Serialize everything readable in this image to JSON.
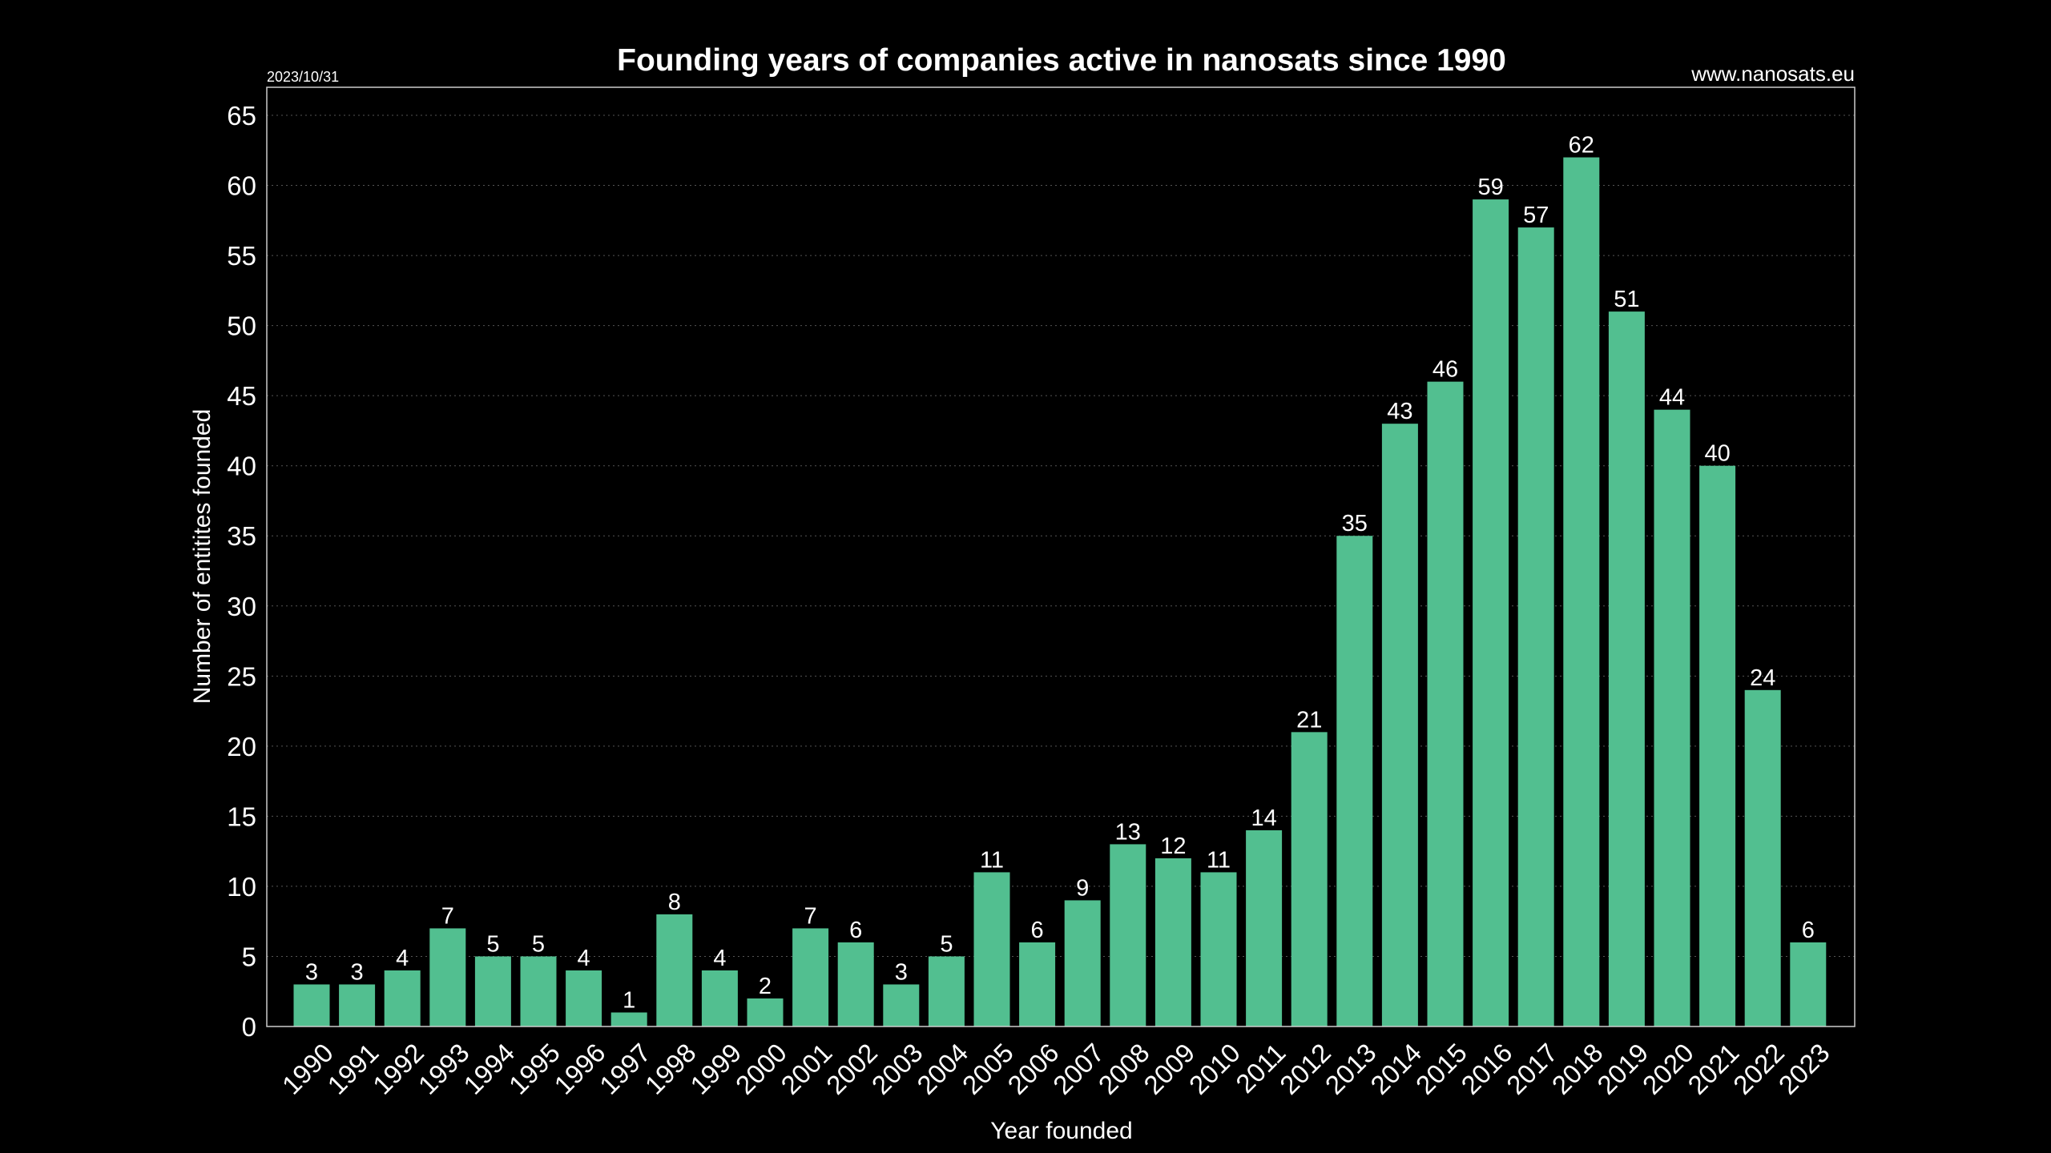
{
  "chart_data": {
    "type": "bar",
    "title": "Founding years of companies active in nanosats since 1990",
    "date": "2023/10/31",
    "site": "www.nanosats.eu",
    "xlabel": "Year founded",
    "ylabel": "Number of entitites founded",
    "ylim": [
      0,
      67
    ],
    "yticks": [
      0,
      5,
      10,
      15,
      20,
      25,
      30,
      35,
      40,
      45,
      50,
      55,
      60,
      65
    ],
    "grid": true,
    "bar_color": "#52bf90",
    "background_color": "#000000",
    "text_color": "#ffffff",
    "categories": [
      "1990",
      "1991",
      "1992",
      "1993",
      "1994",
      "1995",
      "1996",
      "1997",
      "1998",
      "1999",
      "2000",
      "2001",
      "2002",
      "2003",
      "2004",
      "2005",
      "2006",
      "2007",
      "2008",
      "2009",
      "2010",
      "2011",
      "2012",
      "2013",
      "2014",
      "2015",
      "2016",
      "2017",
      "2018",
      "2019",
      "2020",
      "2021",
      "2022",
      "2023"
    ],
    "values": [
      3,
      3,
      4,
      7,
      5,
      5,
      4,
      1,
      8,
      4,
      2,
      7,
      6,
      3,
      5,
      11,
      6,
      9,
      13,
      12,
      11,
      14,
      21,
      35,
      43,
      46,
      59,
      57,
      62,
      51,
      44,
      40,
      24,
      6
    ]
  }
}
